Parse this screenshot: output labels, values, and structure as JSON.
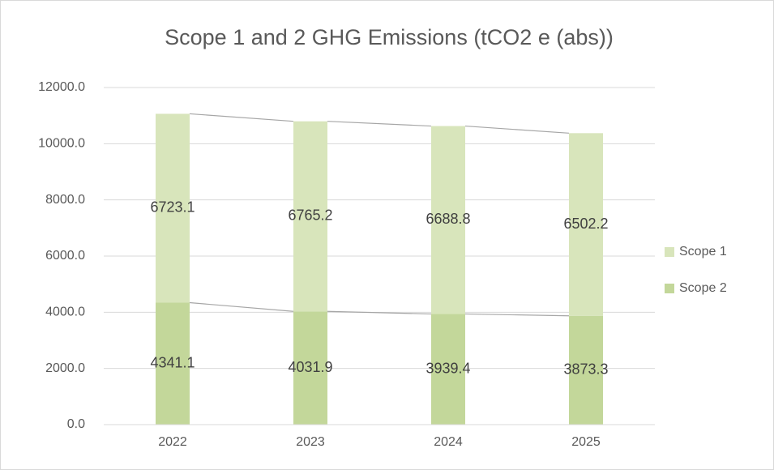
{
  "chart_data": {
    "type": "stacked_bar",
    "title": "Scope 1 and 2 GHG Emissions (tCO2 e (abs))",
    "categories": [
      "2022",
      "2023",
      "2024",
      "2025"
    ],
    "series": [
      {
        "name": "Scope 1",
        "color": "#d8e5bb",
        "values": [
          6723.1,
          6765.2,
          6688.8,
          6502.2
        ]
      },
      {
        "name": "Scope 2",
        "color": "#c3d79a",
        "values": [
          4341.1,
          4031.9,
          3939.4,
          3873.3
        ]
      }
    ],
    "ylim": [
      0,
      12000
    ],
    "yticks": [
      {
        "value": 0,
        "label": "0.0"
      },
      {
        "value": 2000,
        "label": "2000.0"
      },
      {
        "value": 4000,
        "label": "4000.0"
      },
      {
        "value": 6000,
        "label": "6000.0"
      },
      {
        "value": 8000,
        "label": "8000.0"
      },
      {
        "value": 10000,
        "label": "10000.0"
      },
      {
        "value": 12000,
        "label": "12000.0"
      }
    ],
    "grid": true,
    "legend": "right",
    "series_lines": true
  }
}
